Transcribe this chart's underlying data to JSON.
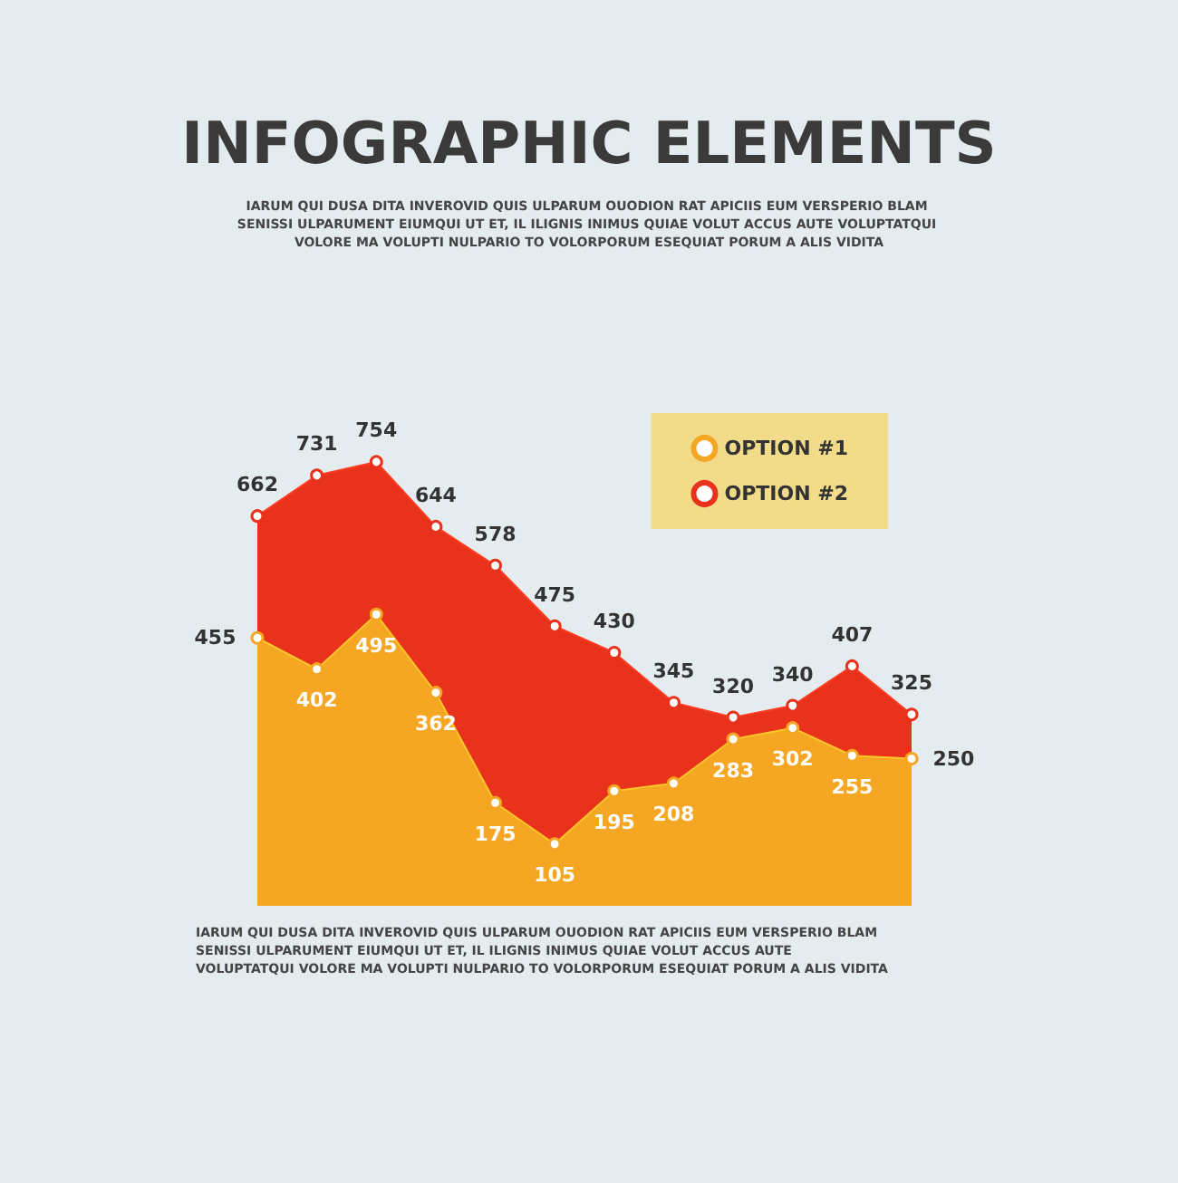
{
  "chart_data": {
    "type": "area",
    "title": "INFOGRAPHIC ELEMENTS",
    "subtitle": "IARUM QUI DUSA DITA INVEROVID QUIS ULPARUM OUODION RAT APICIIS EUM VERSPERIO BLAM SENISSI ULPARUMENT EIUMQUI UT ET, IL ILIGNIS INIMUS QUIAE VOLUT ACCUS AUTE VOLUPTATQUI VOLORE MA VOLUPTI NULPARIO TO VOLORPORUM ESEQUIAT PORUM A ALIS VIDITA",
    "annotations": [
      "IARUM QUI DUSA DITA INVEROVID QUIS ULPARUM OUODION RAT APICIIS EUM VERSPERIO BLAM SENISSI ULPARUMENT EIUMQUI UT ET, IL ILIGNIS INIMUS QUIAE VOLUT ACCUS AUTE VOLUPTATQUI VOLORE MA VOLUPTI NULPARIO TO VOLORPORUM ESEQUIAT PORUM A ALIS VIDITA"
    ],
    "categories": [
      null,
      null,
      null,
      null,
      null,
      null,
      null,
      null,
      null,
      null,
      null,
      null
    ],
    "series": [
      {
        "name": "OPTION #1",
        "color": "#f5a623",
        "values": [
          455,
          402,
          495,
          362,
          175,
          105,
          195,
          208,
          283,
          302,
          255,
          250
        ]
      },
      {
        "name": "OPTION #2",
        "color": "#e8321c",
        "values": [
          662,
          731,
          754,
          644,
          578,
          475,
          430,
          345,
          320,
          340,
          407,
          325
        ]
      }
    ],
    "tick_labels": false,
    "grid": false,
    "legend": "top right",
    "marker": "circle",
    "line_style": "solid",
    "data_labels": true
  }
}
